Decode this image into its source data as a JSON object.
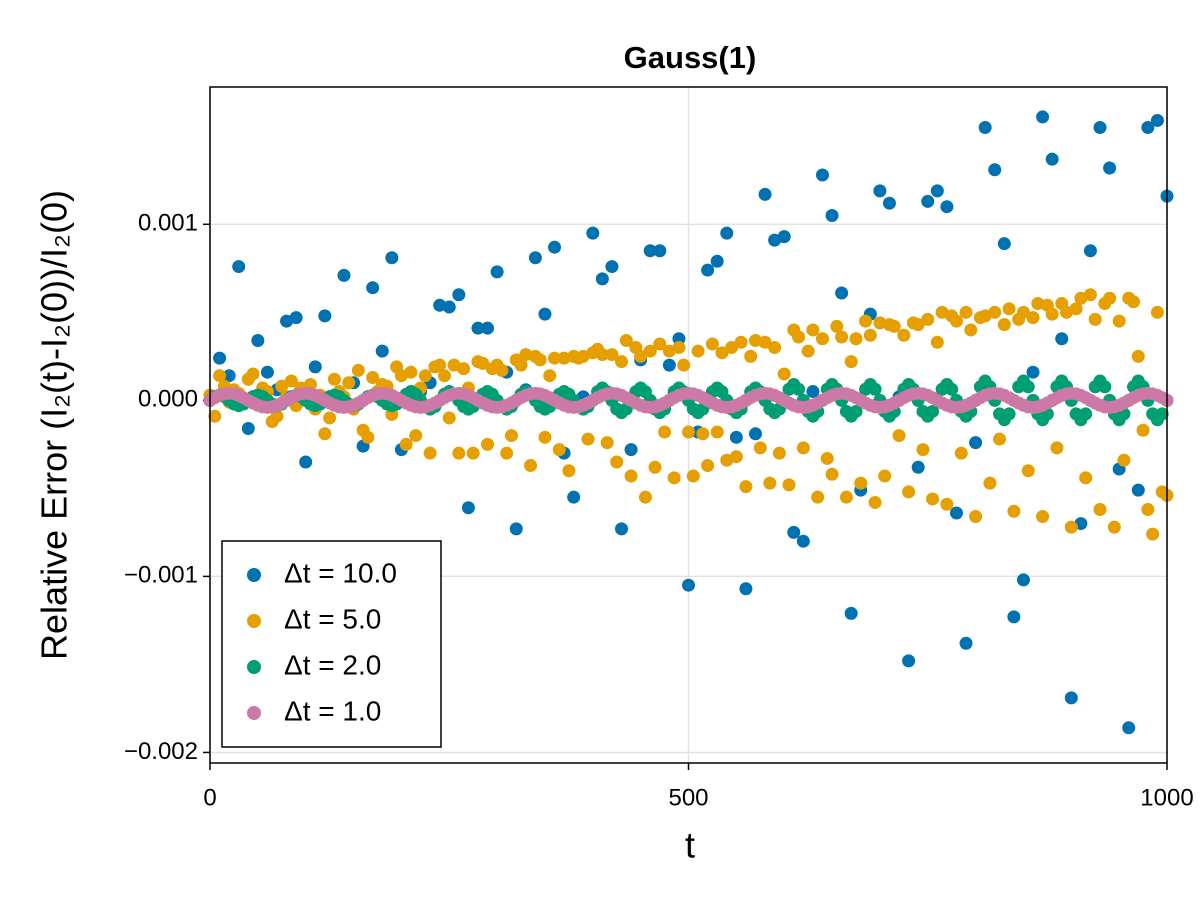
{
  "chart_data": {
    "type": "scatter",
    "title": "Gauss(1)",
    "x_label": "t",
    "y_label": "Relative Error (I₂(t)-I₂(0))/I₂(0)",
    "xlim": [
      0,
      1000
    ],
    "ylim": [
      -0.00206,
      0.00178
    ],
    "xticks": [
      0,
      500,
      1000
    ],
    "yticks": [
      {
        "value": -0.002,
        "label": "−0.002"
      },
      {
        "value": -0.001,
        "label": "−0.001"
      },
      {
        "value": 0,
        "label": "0.000"
      },
      0.001
    ],
    "grid": true,
    "legend": "lower left",
    "x": [
      0,
      5,
      10,
      15,
      20,
      25,
      30,
      35,
      40,
      45,
      50,
      55,
      60,
      65,
      70,
      75,
      80,
      85,
      90,
      95,
      100,
      105,
      110,
      115,
      120,
      125,
      130,
      135,
      140,
      145,
      150,
      155,
      160,
      165,
      170,
      175,
      180,
      185,
      190,
      195,
      200,
      205,
      210,
      215,
      220,
      225,
      230,
      235,
      240,
      245,
      250,
      255,
      260,
      265,
      270,
      275,
      280,
      285,
      290,
      295,
      300,
      305,
      310,
      315,
      320,
      325,
      330,
      335,
      340,
      345,
      350,
      355,
      360,
      365,
      370,
      375,
      380,
      385,
      390,
      395,
      400,
      405,
      410,
      415,
      420,
      425,
      430,
      435,
      440,
      445,
      450,
      455,
      460,
      465,
      470,
      475,
      480,
      485,
      490,
      495,
      500,
      505,
      510,
      515,
      520,
      525,
      530,
      535,
      540,
      545,
      550,
      555,
      560,
      565,
      570,
      575,
      580,
      585,
      590,
      595,
      600,
      605,
      610,
      615,
      620,
      625,
      630,
      635,
      640,
      645,
      650,
      655,
      660,
      665,
      670,
      675,
      680,
      685,
      690,
      695,
      700,
      705,
      710,
      715,
      720,
      725,
      730,
      735,
      740,
      745,
      750,
      755,
      760,
      765,
      770,
      775,
      780,
      785,
      790,
      795,
      800,
      805,
      810,
      815,
      820,
      825,
      830,
      835,
      840,
      845,
      850,
      855,
      860,
      865,
      870,
      875,
      880,
      885,
      890,
      895,
      900,
      905,
      910,
      915,
      920,
      925,
      930,
      935,
      940,
      945,
      950,
      955,
      960,
      965,
      970,
      975,
      980,
      985,
      990,
      995,
      1000
    ],
    "series": [
      {
        "name": "Δt = 10.0",
        "color": "#0072b2",
        "x": [
          0,
          10,
          20,
          30,
          40,
          50,
          60,
          70,
          80,
          90,
          100,
          110,
          120,
          130,
          140,
          150,
          160,
          170,
          180,
          190,
          200,
          210,
          220,
          230,
          240,
          250,
          260,
          270,
          280,
          290,
          300,
          310,
          320,
          330,
          340,
          350,
          360,
          370,
          380,
          390,
          400,
          410,
          420,
          430,
          440,
          450,
          460,
          470,
          480,
          490,
          500,
          510,
          520,
          530,
          540,
          550,
          560,
          570,
          580,
          590,
          600,
          610,
          620,
          630,
          640,
          650,
          660,
          670,
          680,
          690,
          700,
          710,
          720,
          730,
          740,
          750,
          760,
          770,
          780,
          790,
          800,
          810,
          820,
          830,
          840,
          850,
          860,
          870,
          880,
          890,
          900,
          910,
          920,
          930,
          940,
          950,
          960,
          970,
          980,
          990,
          1000
        ],
        "values": [
          0,
          0.00024,
          0.00014,
          0.00076,
          -0.00016,
          0.00034,
          0.00016,
          6e-05,
          0.00045,
          0.00047,
          -0.00035,
          0.00019,
          0.00048,
          0,
          0.00071,
          0.0001,
          -0.00026,
          0.00064,
          0.00028,
          0.00081,
          -0.00028,
          -2e-05,
          5e-05,
          0.0001,
          0.00054,
          0.00053,
          0.0006,
          -0.00061,
          0.00041,
          0.00041,
          0.00073,
          0.00016,
          -0.00073,
          6e-05,
          0.00081,
          0.00049,
          0.00087,
          -0.0003,
          -0.00055,
          2e-05,
          0.00095,
          0.00069,
          0.00076,
          -0.00073,
          -0.00028,
          0.00023,
          0.00085,
          0.00085,
          0.0002,
          0.00035,
          -0.00105,
          -0.00018,
          0.00074,
          0.00079,
          0.00095,
          -0.00021,
          -0.00107,
          -0.00019,
          0.00117,
          0.00091,
          0.00093,
          -0.00075,
          -0.0008,
          5e-05,
          0.00128,
          0.00105,
          0.00061,
          -0.00121,
          -0.00051,
          0.00049,
          0.00119,
          0.00112,
          2e-05,
          -0.00148,
          -0.00038,
          0.00113,
          0.00119,
          0.0011,
          -0.00064,
          -0.00138,
          -0.00024,
          0.00155,
          0.00131,
          0.00089,
          -0.00123,
          -0.00102,
          0.00016,
          0.00161,
          0.00137,
          0.00035,
          -0.00169,
          -0.0007,
          0.00085,
          0.00155,
          0.00132,
          -0.00039,
          -0.00186,
          -0.00051,
          0.00155,
          0.00159,
          0.00116
        ]
      },
      {
        "name": "Δt = 5.0",
        "color": "#e69f00",
        "values": [
          3e-05,
          -9e-05,
          0.00014,
          8e-05,
          -1e-05,
          6e-05,
          4e-05,
          -2e-05,
          0.00012,
          0.00015,
          -2e-05,
          7e-05,
          5e-05,
          -0.00012,
          -9e-05,
          8e-05,
          2e-05,
          0.00011,
          -3e-05,
          7e-05,
          6e-05,
          9e-05,
          -5e-05,
          3e-05,
          -0.00019,
          -0.0001,
          0.00012,
          5e-05,
          2e-05,
          0.0001,
          -5e-05,
          0.00017,
          -0.00017,
          -0.00021,
          0.00013,
          5e-05,
          9e-05,
          8e-05,
          -8e-05,
          0.00019,
          0.00014,
          -0.00025,
          0.00016,
          -0.0002,
          7e-05,
          0.00014,
          -0.0003,
          0.00019,
          0.0002,
          0.00014,
          -0.0001,
          0.0002,
          -0.0003,
          0.00018,
          7e-05,
          -0.0003,
          0.00022,
          0.00021,
          -0.00025,
          0.00018,
          0.0002,
          0.00017,
          -0.0003,
          -0.0002,
          0.00023,
          0.0002,
          0.00026,
          -0.00037,
          0.00025,
          0.00023,
          -0.00021,
          0.00014,
          0.00024,
          -0.00028,
          0.00024,
          -0.0004,
          0.00025,
          0.00024,
          0.00025,
          -0.00022,
          0.00027,
          0.00029,
          0.00026,
          -0.00024,
          0.00026,
          -0.00035,
          0.00022,
          0.00034,
          -0.00043,
          0.0003,
          0.00025,
          -0.00055,
          0.00028,
          -0.00038,
          0.00032,
          -0.00018,
          0.00028,
          -0.00044,
          0.0003,
          0.0002,
          -0.00018,
          -0.00043,
          0.00028,
          -0.00019,
          -0.00037,
          0.00032,
          -0.00018,
          0.00027,
          -0.00034,
          0.0003,
          -0.00032,
          0.00033,
          -0.00049,
          0.00025,
          0.00034,
          -0.00027,
          0.00033,
          -0.00047,
          0.0003,
          -0.0003,
          0.00015,
          -0.00048,
          0.0004,
          0.00036,
          -0.00027,
          0.00028,
          0.0004,
          -0.00055,
          0.00035,
          -0.00033,
          -0.00042,
          0.00042,
          0.00036,
          -0.00055,
          0.00022,
          0.00035,
          -0.00047,
          0.00045,
          0.00037,
          -0.00058,
          0.00044,
          -0.00043,
          0.00043,
          0.00042,
          -0.0002,
          0.00037,
          -0.00052,
          0.00044,
          0.00043,
          -0.00028,
          0.00046,
          -0.00056,
          0.00033,
          0.0005,
          -0.00059,
          0.00048,
          0.00045,
          -0.0003,
          0.0005,
          0.0004,
          -0.00066,
          0.00047,
          0.00048,
          -0.00047,
          0.0005,
          -0.00022,
          0.00043,
          0.00052,
          -0.00063,
          0.00046,
          0.0005,
          -0.0004,
          0.00047,
          0.00055,
          -0.00066,
          0.00054,
          0.00049,
          -0.00027,
          0.00055,
          0.0005,
          -0.00072,
          0.00052,
          0.00058,
          -0.00044,
          0.0006,
          0.00046,
          -0.00062,
          0.00055,
          0.00058,
          -0.00072,
          0.00045,
          -0.00034,
          0.00058,
          0.00056,
          0.00025,
          -0.00017,
          -0.00062,
          -0.00076,
          0.0005,
          -0.00052,
          -0.00054
        ]
      },
      {
        "name": "Δt = 2.0",
        "color": "#009e73",
        "values": [
          0,
          2.1e-05,
          3e-05,
          2.1e-05,
          0,
          -2.1e-05,
          -3e-05,
          -2.1e-05,
          0,
          2.1e-05,
          3e-05,
          2.1e-05,
          0,
          -2.1e-05,
          -3e-05,
          -2.1e-05,
          0,
          2.1e-05,
          3e-05,
          2.1e-05,
          0,
          -2.1e-05,
          -3e-05,
          -2.1e-05,
          0,
          2.1e-05,
          3e-05,
          2.1e-05,
          0,
          -2.1e-05,
          -3e-05,
          -2.1e-05,
          0,
          2.1e-05,
          3e-05,
          2.1e-05,
          0,
          -2.1e-05,
          -3e-05,
          -2.1e-05,
          0,
          3.5e-05,
          5e-05,
          3.5e-05,
          0,
          -3.5e-05,
          -5e-05,
          -3.5e-05,
          0,
          3.5e-05,
          5e-05,
          3.5e-05,
          0,
          -3.5e-05,
          -5e-05,
          -3.5e-05,
          0,
          3.5e-05,
          5e-05,
          3.5e-05,
          0,
          -3.5e-05,
          -5e-05,
          -3.5e-05,
          0,
          3.5e-05,
          5e-05,
          3.5e-05,
          0,
          -3.5e-05,
          -5e-05,
          -3.5e-05,
          0,
          3.5e-05,
          5e-05,
          3.5e-05,
          0,
          -3.5e-05,
          -5e-05,
          -3.5e-05,
          0,
          4.9e-05,
          7e-05,
          4.9e-05,
          0,
          -4.9e-05,
          -7e-05,
          -4.9e-05,
          0,
          4.9e-05,
          7e-05,
          4.9e-05,
          0,
          -4.9e-05,
          -7e-05,
          -4.9e-05,
          0,
          4.9e-05,
          7e-05,
          4.9e-05,
          0,
          -4.9e-05,
          -7e-05,
          -4.9e-05,
          0,
          4.9e-05,
          7e-05,
          4.9e-05,
          0,
          -4.9e-05,
          -7e-05,
          -4.9e-05,
          0,
          4.9e-05,
          7e-05,
          4.9e-05,
          0,
          -4.9e-05,
          -7e-05,
          -4.9e-05,
          0,
          6.3e-05,
          9e-05,
          6.3e-05,
          0,
          -6.3e-05,
          -9e-05,
          -6.3e-05,
          0,
          6.3e-05,
          9e-05,
          6.3e-05,
          0,
          -6.3e-05,
          -9e-05,
          -6.3e-05,
          0,
          6.3e-05,
          9e-05,
          6.3e-05,
          0,
          -6.3e-05,
          -9e-05,
          -6.3e-05,
          0,
          6.3e-05,
          9e-05,
          6.3e-05,
          0,
          -6.3e-05,
          -9e-05,
          -6.3e-05,
          0,
          6.3e-05,
          9e-05,
          6.3e-05,
          0,
          -6.3e-05,
          -9e-05,
          -6.3e-05,
          0,
          7.7e-05,
          0.00011,
          7.7e-05,
          0,
          -7.7e-05,
          -0.00011,
          -7.7e-05,
          0,
          7.7e-05,
          0.00011,
          7.7e-05,
          0,
          -7.7e-05,
          -0.00011,
          -7.7e-05,
          0,
          7.7e-05,
          0.00011,
          7.7e-05,
          0,
          -7.7e-05,
          -0.00011,
          -7.7e-05,
          0,
          7.7e-05,
          0.00011,
          7.7e-05,
          0,
          -7.7e-05,
          -0.00011,
          -7.7e-05,
          0,
          7.7e-05,
          0.00011,
          7.7e-05,
          0,
          -7.7e-05,
          -0.00011,
          -7.7e-05,
          0
        ]
      },
      {
        "name": "Δt = 1.0",
        "color": "#cc79a7",
        "values": [
          0,
          1.5e-05,
          2.8e-05,
          3.7e-05,
          4e-05,
          3.7e-05,
          2.8e-05,
          1.5e-05,
          0,
          -1.5e-05,
          -2.8e-05,
          -3.7e-05,
          -4e-05,
          -3.7e-05,
          -2.8e-05,
          -1.5e-05,
          0,
          1.5e-05,
          2.8e-05,
          3.7e-05,
          4e-05,
          3.7e-05,
          2.8e-05,
          1.5e-05,
          0,
          -1.5e-05,
          -2.8e-05,
          -3.7e-05,
          -4e-05,
          -3.7e-05,
          -2.8e-05,
          -1.5e-05,
          0,
          1.5e-05,
          2.8e-05,
          3.7e-05,
          4e-05,
          3.7e-05,
          2.8e-05,
          1.5e-05,
          0,
          -1.5e-05,
          -2.8e-05,
          -3.7e-05,
          -4e-05,
          -3.7e-05,
          -2.8e-05,
          -1.5e-05,
          0,
          1.5e-05,
          2.8e-05,
          3.7e-05,
          4e-05,
          3.7e-05,
          2.8e-05,
          1.5e-05,
          0,
          -1.5e-05,
          -2.8e-05,
          -3.7e-05,
          -4e-05,
          -3.7e-05,
          -2.8e-05,
          -1.5e-05,
          0,
          1.5e-05,
          2.8e-05,
          3.7e-05,
          4e-05,
          3.7e-05,
          2.8e-05,
          1.5e-05,
          0,
          -1.5e-05,
          -2.8e-05,
          -3.7e-05,
          -4e-05,
          -3.7e-05,
          -2.8e-05,
          -1.5e-05,
          0,
          1.5e-05,
          2.8e-05,
          3.7e-05,
          4e-05,
          3.7e-05,
          2.8e-05,
          1.5e-05,
          0,
          -1.5e-05,
          -2.8e-05,
          -3.7e-05,
          -4e-05,
          -3.7e-05,
          -2.8e-05,
          -1.5e-05,
          0,
          1.5e-05,
          2.8e-05,
          3.7e-05,
          4e-05,
          3.7e-05,
          2.8e-05,
          1.5e-05,
          0,
          -1.5e-05,
          -2.8e-05,
          -3.7e-05,
          -4e-05,
          -3.7e-05,
          -2.8e-05,
          -1.5e-05,
          0,
          1.5e-05,
          2.8e-05,
          3.7e-05,
          4e-05,
          3.7e-05,
          2.8e-05,
          1.5e-05,
          0,
          -1.5e-05,
          -2.8e-05,
          -3.7e-05,
          -4e-05,
          -3.7e-05,
          -2.8e-05,
          -1.5e-05,
          0,
          1.5e-05,
          2.8e-05,
          3.7e-05,
          4e-05,
          3.7e-05,
          2.8e-05,
          1.5e-05,
          0,
          -1.5e-05,
          -2.8e-05,
          -3.7e-05,
          -4e-05,
          -3.7e-05,
          -2.8e-05,
          -1.5e-05,
          0,
          1.5e-05,
          2.8e-05,
          3.7e-05,
          4e-05,
          3.7e-05,
          2.8e-05,
          1.5e-05,
          0,
          -1.5e-05,
          -2.8e-05,
          -3.7e-05,
          -4e-05,
          -3.7e-05,
          -2.8e-05,
          -1.5e-05,
          0,
          1.5e-05,
          2.8e-05,
          3.7e-05,
          4e-05,
          3.7e-05,
          2.8e-05,
          1.5e-05,
          0,
          -1.5e-05,
          -2.8e-05,
          -3.7e-05,
          -4e-05,
          -3.7e-05,
          -2.8e-05,
          -1.5e-05,
          0,
          1.5e-05,
          2.8e-05,
          3.7e-05,
          4e-05,
          3.7e-05,
          2.8e-05,
          1.5e-05,
          0,
          -1.5e-05,
          -2.8e-05,
          -3.7e-05,
          -4e-05,
          -3.7e-05,
          -2.8e-05,
          -1.5e-05,
          0,
          1.5e-05,
          2.8e-05,
          3.7e-05,
          4e-05,
          3.7e-05,
          2.8e-05,
          1.5e-05,
          0
        ]
      }
    ]
  }
}
